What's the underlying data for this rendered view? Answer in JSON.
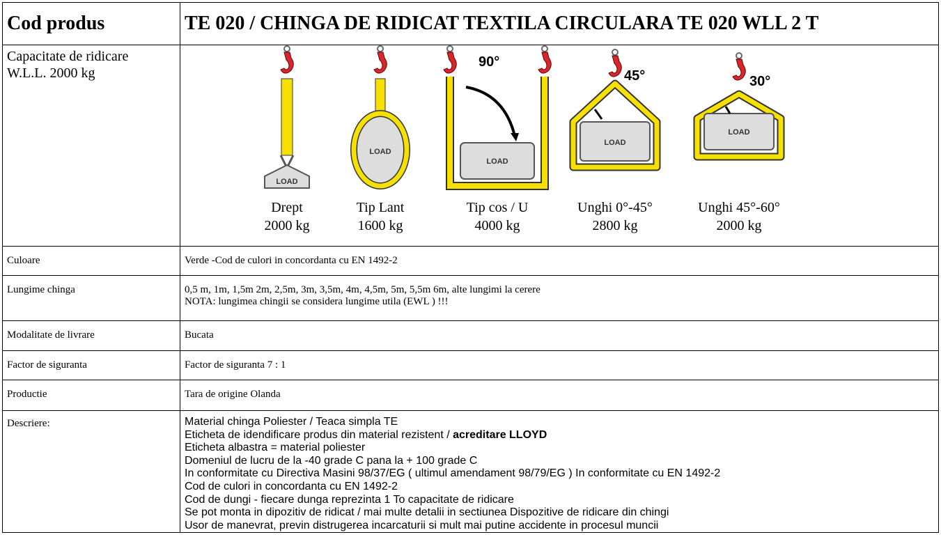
{
  "table": {
    "header": [
      "Cod produs",
      "TE 020 / CHINGA DE RIDICAT TEXTILA CIRCULARA TE 020 WLL 2 T"
    ],
    "capacity": {
      "label": [
        "Capacitate de ridicare",
        "W.L.L. 2000 kg"
      ],
      "load_text": "LOAD",
      "configs": [
        {
          "name": "Drept",
          "load": "2000 kg"
        },
        {
          "name": "Tip Lant",
          "load": "1600 kg"
        },
        {
          "name": "Tip cos / U",
          "load": "4000 kg",
          "angle": "90°"
        },
        {
          "name": "Unghi 0°-45°",
          "load": "2800 kg",
          "angle": "45°"
        },
        {
          "name": "Unghi 45°-60°",
          "load": "2000 kg",
          "angle": "30°"
        }
      ]
    },
    "rows": [
      {
        "label": "Culoare",
        "lines": [
          "Verde -Cod de culori in concordanta cu EN 1492-2"
        ]
      },
      {
        "label": "Lungime chinga",
        "lines": [
          "0,5 m, 1m, 1,5m 2m, 2,5m, 3m, 3,5m, 4m, 4,5m, 5m, 5,5m 6m,  alte lungimi la cerere",
          "NOTA: lungimea chingii se considera lungime utila (EWL ) !!!"
        ]
      },
      {
        "label": "Modalitate de livrare",
        "lines": [
          "Bucata"
        ]
      },
      {
        "label": "Factor de siguranta",
        "lines": [
          "Factor de siguranta 7 : 1"
        ]
      },
      {
        "label": "Productie",
        "lines": [
          "Tara de origine Olanda"
        ]
      }
    ],
    "description": {
      "label": "Descriere:",
      "lines": [
        "Material chinga Poliester /  Teaca simpla TE",
        [
          "Eticheta de idendificare produs din material rezistent / ",
          "acreditare LLOYD"
        ],
        "Eticheta albastra = material poliester",
        "Domeniul de lucru de la -40 grade C pana la + 100 grade C",
        "In conformitate cu Directiva Masini 98/37/EG ( ultimul amendament 98/79/EG ) In conformitate cu EN 1492-2",
        "Cod de culori in concordanta cu EN 1492-2",
        "Cod de dungi - fiecare dunga reprezinta 1 To capacitate de ridicare",
        "Se pot monta in dipozitiv de ridicat / mai multe detalii in sectiunea Dispozitive de ridicare din chingi",
        "Usor de manevrat, previn distrugerea incarcaturii si mult mai putine accidente in procesul muncii"
      ]
    }
  }
}
